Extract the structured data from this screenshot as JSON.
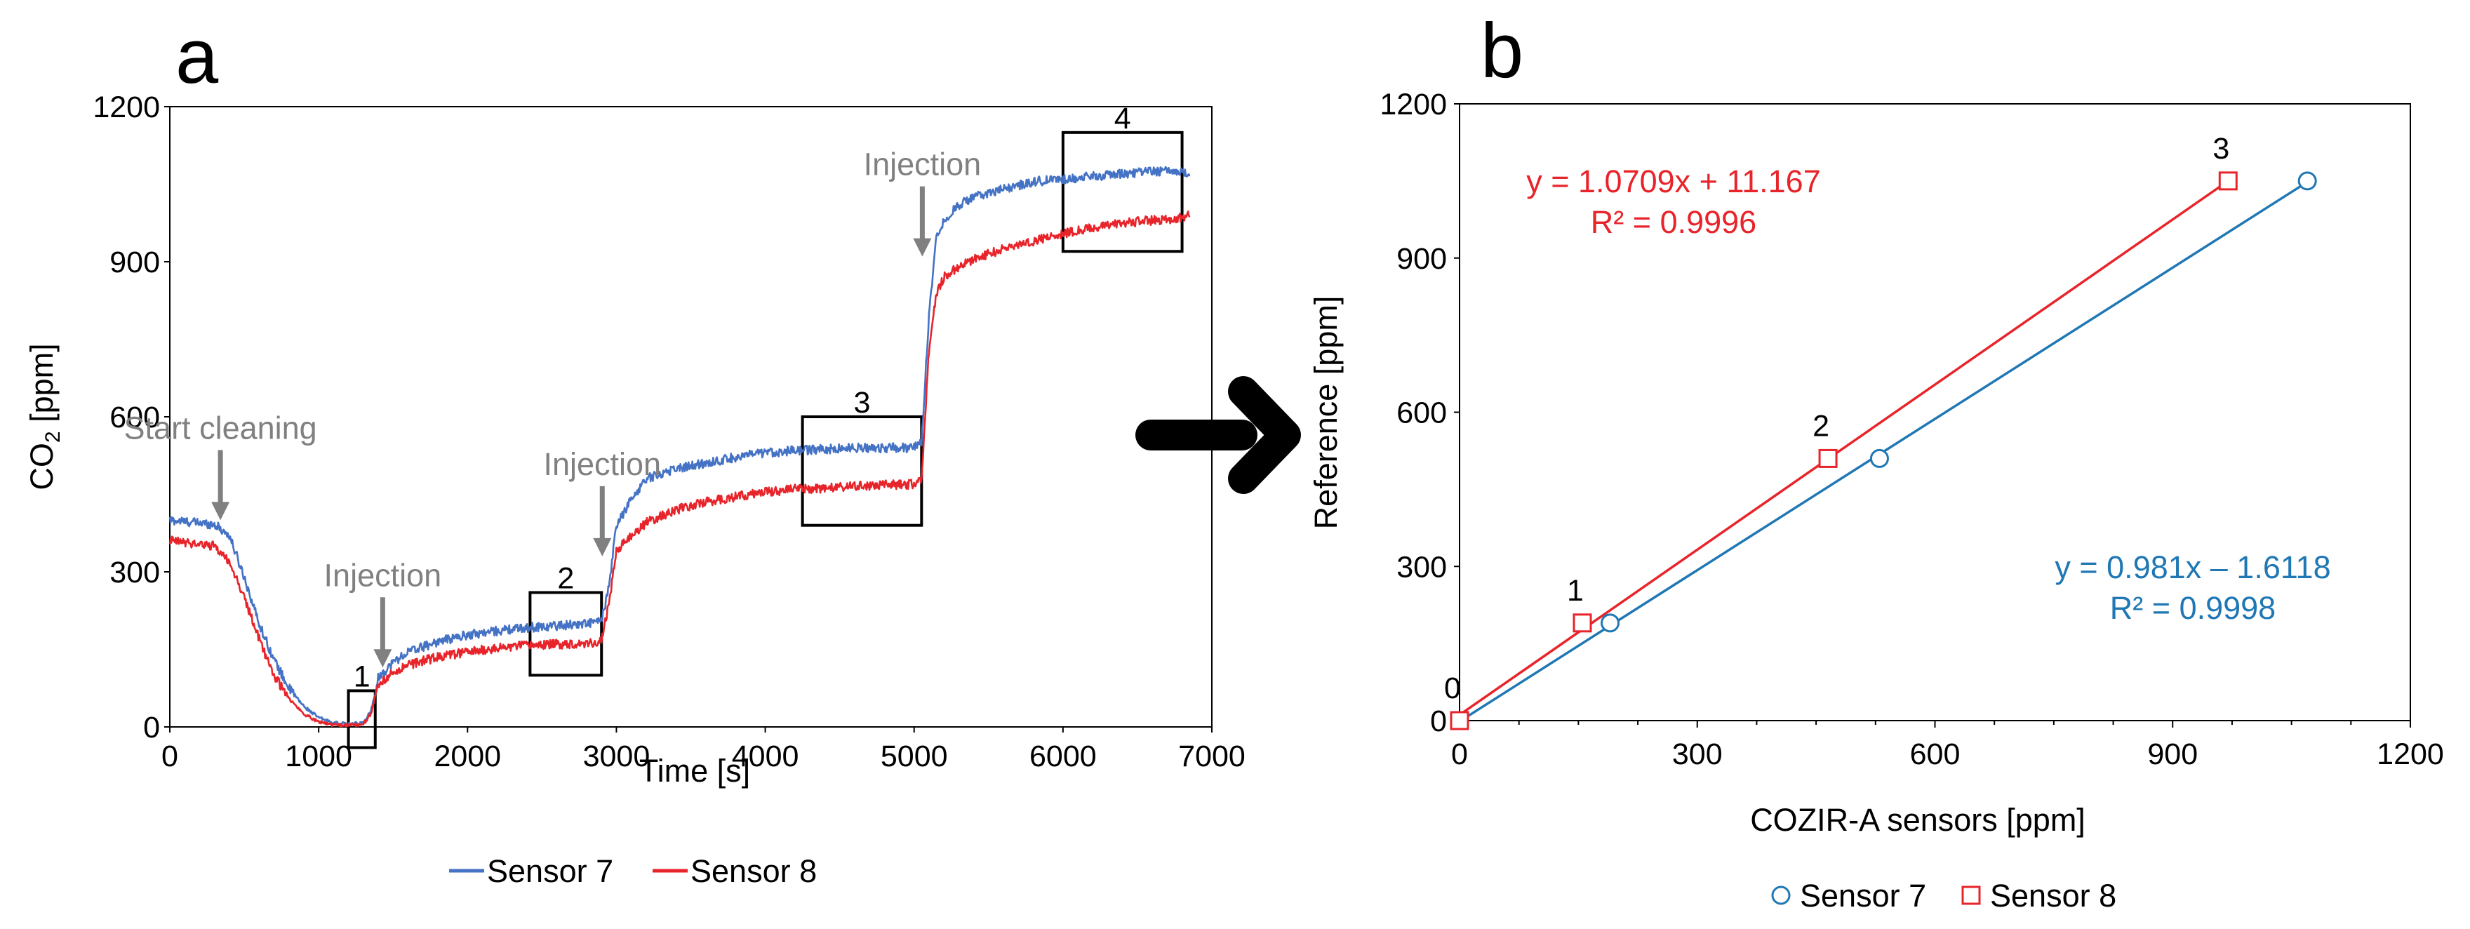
{
  "chart_data": [
    {
      "panel": "a",
      "type": "line",
      "xlabel": "Time [s]",
      "ylabel": "CO2 [ppm]",
      "ylabel_main": "CO",
      "ylabel_sub": "2",
      "ylabel_rest": " [ppm]",
      "xlim": [
        0,
        7000
      ],
      "ylim": [
        0,
        1200
      ],
      "xticks": [
        0,
        1000,
        2000,
        3000,
        4000,
        5000,
        6000,
        7000
      ],
      "yticks": [
        0,
        300,
        600,
        900,
        1200
      ],
      "series": [
        {
          "name": "Sensor 7",
          "color": "#4472c4",
          "points": [
            [
              0,
              400
            ],
            [
              300,
              392
            ],
            [
              400,
              370
            ],
            [
              500,
              290
            ],
            [
              600,
              200
            ],
            [
              700,
              130
            ],
            [
              800,
              75
            ],
            [
              900,
              40
            ],
            [
              1000,
              18
            ],
            [
              1100,
              8
            ],
            [
              1200,
              5
            ],
            [
              1300,
              8
            ],
            [
              1350,
              30
            ],
            [
              1400,
              95
            ],
            [
              1500,
              125
            ],
            [
              1600,
              145
            ],
            [
              1800,
              165
            ],
            [
              2000,
              178
            ],
            [
              2200,
              186
            ],
            [
              2400,
              192
            ],
            [
              2600,
              196
            ],
            [
              2800,
              200
            ],
            [
              2900,
              205
            ],
            [
              2950,
              270
            ],
            [
              3000,
              390
            ],
            [
              3100,
              440
            ],
            [
              3200,
              480
            ],
            [
              3400,
              500
            ],
            [
              3600,
              510
            ],
            [
              3800,
              522
            ],
            [
              4000,
              530
            ],
            [
              4200,
              535
            ],
            [
              4400,
              537
            ],
            [
              4600,
              540
            ],
            [
              4800,
              540
            ],
            [
              5000,
              540
            ],
            [
              5050,
              550
            ],
            [
              5100,
              800
            ],
            [
              5150,
              950
            ],
            [
              5200,
              980
            ],
            [
              5300,
              1010
            ],
            [
              5400,
              1025
            ],
            [
              5600,
              1040
            ],
            [
              5800,
              1055
            ],
            [
              6000,
              1060
            ],
            [
              6200,
              1065
            ],
            [
              6400,
              1070
            ],
            [
              6600,
              1075
            ],
            [
              6800,
              1075
            ],
            [
              6850,
              1065
            ]
          ]
        },
        {
          "name": "Sensor 8",
          "color": "#e8242b",
          "points": [
            [
              0,
              360
            ],
            [
              300,
              350
            ],
            [
              400,
              320
            ],
            [
              500,
              250
            ],
            [
              600,
              170
            ],
            [
              700,
              100
            ],
            [
              800,
              55
            ],
            [
              900,
              25
            ],
            [
              1000,
              10
            ],
            [
              1100,
              4
            ],
            [
              1200,
              3
            ],
            [
              1300,
              5
            ],
            [
              1350,
              25
            ],
            [
              1400,
              80
            ],
            [
              1500,
              105
            ],
            [
              1600,
              120
            ],
            [
              1800,
              135
            ],
            [
              2000,
              145
            ],
            [
              2200,
              152
            ],
            [
              2400,
              158
            ],
            [
              2600,
              160
            ],
            [
              2800,
              162
            ],
            [
              2900,
              165
            ],
            [
              2950,
              240
            ],
            [
              3000,
              340
            ],
            [
              3100,
              370
            ],
            [
              3200,
              395
            ],
            [
              3400,
              420
            ],
            [
              3600,
              435
            ],
            [
              3800,
              445
            ],
            [
              4000,
              455
            ],
            [
              4200,
              460
            ],
            [
              4400,
              462
            ],
            [
              4600,
              465
            ],
            [
              4800,
              468
            ],
            [
              5000,
              470
            ],
            [
              5050,
              480
            ],
            [
              5100,
              730
            ],
            [
              5150,
              840
            ],
            [
              5200,
              870
            ],
            [
              5300,
              890
            ],
            [
              5400,
              905
            ],
            [
              5600,
              925
            ],
            [
              5800,
              940
            ],
            [
              6000,
              955
            ],
            [
              6200,
              965
            ],
            [
              6400,
              975
            ],
            [
              6600,
              980
            ],
            [
              6800,
              985
            ],
            [
              6850,
              990
            ]
          ]
        }
      ],
      "annotations": [
        {
          "text": "Start cleaning",
          "at": [
            340,
            400
          ]
        },
        {
          "text": "Injection",
          "at": [
            1430,
            115
          ]
        },
        {
          "text": "Injection",
          "at": [
            2905,
            330
          ]
        },
        {
          "text": "Injection",
          "at": [
            5055,
            910
          ]
        }
      ],
      "boxes": [
        {
          "label": "1",
          "x": [
            1200,
            1380
          ],
          "y": [
            -40,
            70
          ]
        },
        {
          "label": "2",
          "x": [
            2420,
            2900
          ],
          "y": [
            100,
            260
          ]
        },
        {
          "label": "3",
          "x": [
            4250,
            5050
          ],
          "y": [
            390,
            600
          ]
        },
        {
          "label": "4",
          "x": [
            6000,
            6800
          ],
          "y": [
            920,
            1150
          ]
        }
      ],
      "legend": [
        "Sensor 7",
        "Sensor 8"
      ]
    },
    {
      "panel": "b",
      "type": "scatter",
      "xlabel": "COZIR-A sensors [ppm]",
      "ylabel": "Reference [ppm]",
      "xlim": [
        0,
        1200
      ],
      "ylim": [
        0,
        1200
      ],
      "xticks": [
        0,
        300,
        600,
        900,
        1200
      ],
      "yticks": [
        0,
        300,
        600,
        900,
        1200
      ],
      "series": [
        {
          "name": "Sensor 7",
          "color": "#1f77b4",
          "marker": "circle",
          "points": [
            [
              0,
              0
            ],
            [
              190,
              190
            ],
            [
              530,
              510
            ],
            [
              1070,
              1050
            ]
          ],
          "fit": {
            "slope": 0.981,
            "intercept": -1.6118,
            "equation": "y = 0.981x – 1.6118",
            "r2": "R² = 0.9998"
          }
        },
        {
          "name": "Sensor 8",
          "color": "#e8242b",
          "marker": "square",
          "points": [
            [
              0,
              0
            ],
            [
              155,
              190
            ],
            [
              465,
              510
            ],
            [
              970,
              1050
            ]
          ],
          "fit": {
            "slope": 1.0709,
            "intercept": 11.167,
            "equation": "y = 1.0709x + 11.167",
            "r2": "R² = 0.9996"
          }
        }
      ],
      "point_labels": [
        "0",
        "1",
        "2",
        "3"
      ],
      "legend": [
        "Sensor 7",
        "Sensor 8"
      ]
    }
  ]
}
